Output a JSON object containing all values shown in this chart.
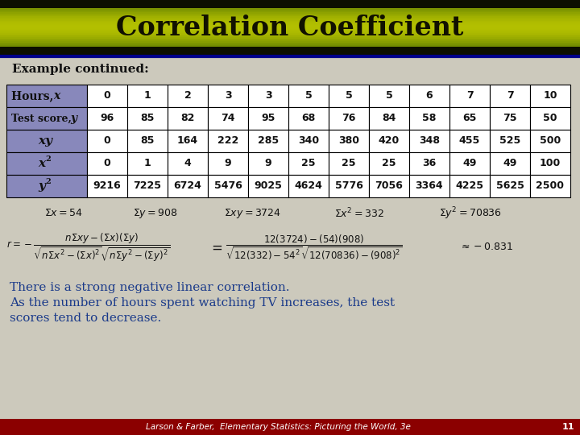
{
  "title": "Correlation Coefficient",
  "title_color": "#111100",
  "body_bg": "#ccc9bc",
  "example_label": "Example continued:",
  "table": {
    "row_labels": [
      "Hours, x",
      "Test score, y",
      "xy",
      "x2",
      "y2"
    ],
    "label_col_color": "#8888bb",
    "data_col_color": "#ffffff",
    "col_values": [
      [
        0,
        96,
        0,
        0,
        9216
      ],
      [
        1,
        85,
        85,
        1,
        7225
      ],
      [
        2,
        82,
        164,
        4,
        6724
      ],
      [
        3,
        74,
        222,
        9,
        5476
      ],
      [
        3,
        95,
        285,
        9,
        9025
      ],
      [
        5,
        68,
        340,
        25,
        4624
      ],
      [
        5,
        76,
        380,
        25,
        5776
      ],
      [
        5,
        84,
        420,
        25,
        7056
      ],
      [
        6,
        58,
        348,
        36,
        3364
      ],
      [
        7,
        65,
        455,
        49,
        4225
      ],
      [
        7,
        75,
        525,
        49,
        5625
      ],
      [
        10,
        50,
        500,
        100,
        2500
      ]
    ]
  },
  "sums": [
    [
      "\\Sigma x = 54",
      55
    ],
    [
      "\\Sigma y = 908",
      165
    ],
    [
      "\\Sigma xy = 3724",
      278
    ],
    [
      "\\Sigma x^2 = 332",
      415
    ],
    [
      "\\Sigma y^2 = 70836",
      545
    ]
  ],
  "conclusion1": "There is a strong negative linear correlation.",
  "conclusion2": "As the number of hours spent watching TV increases, the test",
  "conclusion3": "scores tend to decrease.",
  "conclusion_color": "#1a3a8a",
  "footer_text": "Larson & Farber,  Elementary Statistics: Picturing the World, 3e",
  "footer_page": "11",
  "footer_bg": "#8b0000",
  "footer_color": "#ffffff",
  "blue_line_color": "#00008b",
  "banner_color_light": "#a0b800",
  "banner_color_mid": "#7a9200",
  "banner_color_dark": "#101000"
}
